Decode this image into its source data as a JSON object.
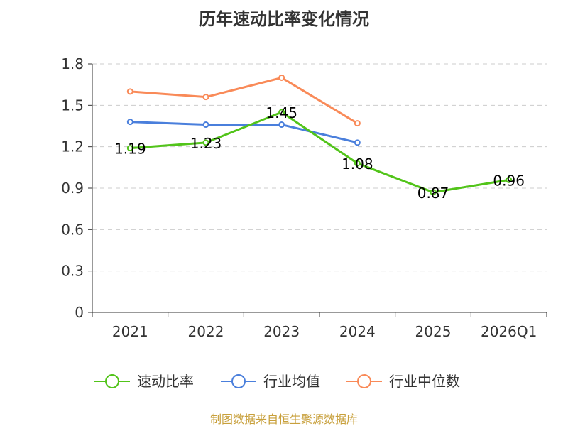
{
  "chart_data": {
    "type": "line",
    "title": "历年速动比率变化情况",
    "categories": [
      "2021",
      "2022",
      "2023",
      "2024",
      "2025",
      "2026Q1"
    ],
    "y_ticks": [
      "0",
      "0.3",
      "0.6",
      "0.9",
      "1.2",
      "1.5",
      "1.8"
    ],
    "ylim": [
      0,
      1.8
    ],
    "grid": true,
    "legend_position": "bottom",
    "series": [
      {
        "name": "速动比率",
        "color": "#52c41a",
        "values": [
          1.19,
          1.23,
          1.45,
          1.08,
          0.87,
          0.96
        ],
        "labels": [
          "1.19",
          "1.23",
          "1.45",
          "1.08",
          "0.87",
          "0.96"
        ],
        "show_labels": true
      },
      {
        "name": "行业均值",
        "color": "#4a7fdc",
        "values": [
          1.38,
          1.36,
          1.36,
          1.23,
          null,
          null
        ],
        "show_labels": false
      },
      {
        "name": "行业中位数",
        "color": "#f98a58",
        "values": [
          1.6,
          1.56,
          1.7,
          1.37,
          null,
          null
        ],
        "show_labels": false
      }
    ]
  },
  "source": {
    "text": "制图数据来自恒生聚源数据库",
    "color": "#c8a03c"
  }
}
